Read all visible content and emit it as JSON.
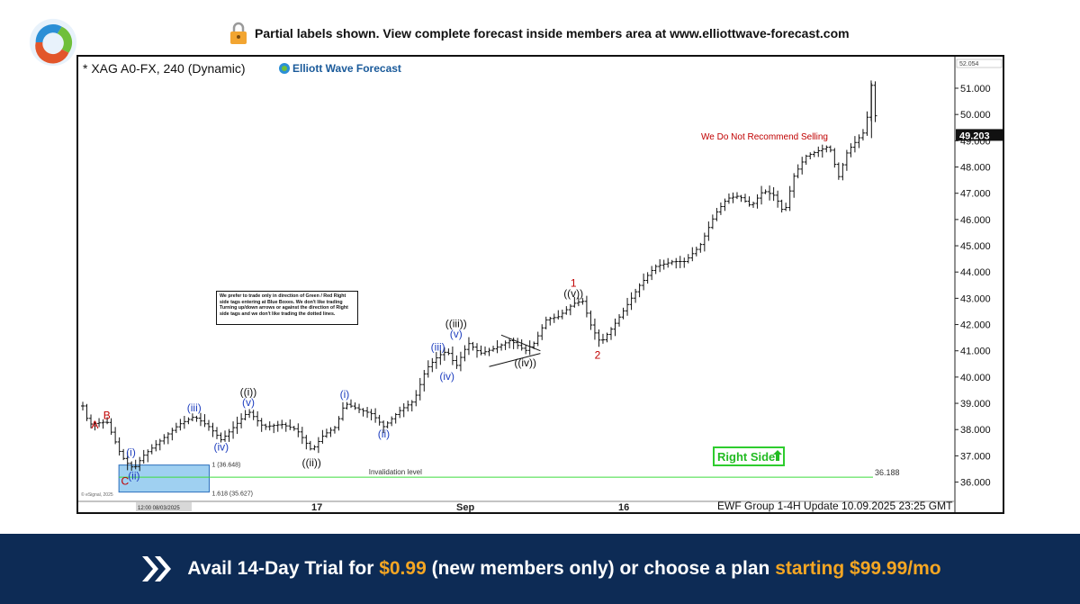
{
  "banner": {
    "text": "Partial labels shown. View complete forecast inside members area at www.elliottwave-forecast.com",
    "icon": "lock-icon"
  },
  "chart_data": {
    "type": "candlestick",
    "symbol_title": "* XAG A0-FX, 240 (Dynamic)",
    "brand": "Elliott Wave Forecast",
    "y_axis": {
      "range": [
        35.3,
        52.2
      ],
      "ticks": [
        "36.000",
        "37.000",
        "38.000",
        "39.000",
        "40.000",
        "41.000",
        "42.000",
        "43.000",
        "44.000",
        "45.000",
        "46.000",
        "47.000",
        "48.000",
        "49.000",
        "50.000",
        "51.000"
      ],
      "top_clipped_label": "52.054"
    },
    "last_price": "49.203",
    "x_axis": {
      "labels": [
        "12:00 08/03/2025",
        "17",
        "Sep",
        "16"
      ]
    },
    "price_path": [
      {
        "t": 0,
        "p": 38.9
      },
      {
        "t": 2,
        "p": 38.2
      },
      {
        "t": 8,
        "p": 38.3
      },
      {
        "t": 12,
        "p": 37.2
      },
      {
        "t": 14,
        "p": 36.8
      },
      {
        "t": 17,
        "p": 36.5
      },
      {
        "t": 20,
        "p": 37.0
      },
      {
        "t": 26,
        "p": 37.6
      },
      {
        "t": 32,
        "p": 38.2
      },
      {
        "t": 37,
        "p": 38.5
      },
      {
        "t": 42,
        "p": 38.1
      },
      {
        "t": 46,
        "p": 37.6
      },
      {
        "t": 51,
        "p": 38.2
      },
      {
        "t": 55,
        "p": 38.7
      },
      {
        "t": 60,
        "p": 38.1
      },
      {
        "t": 66,
        "p": 38.2
      },
      {
        "t": 71,
        "p": 38.0
      },
      {
        "t": 76,
        "p": 37.2
      },
      {
        "t": 80,
        "p": 37.8
      },
      {
        "t": 84,
        "p": 38.1
      },
      {
        "t": 87,
        "p": 39.0
      },
      {
        "t": 91,
        "p": 38.8
      },
      {
        "t": 96,
        "p": 38.6
      },
      {
        "t": 100,
        "p": 38.1
      },
      {
        "t": 105,
        "p": 38.7
      },
      {
        "t": 110,
        "p": 39.1
      },
      {
        "t": 114,
        "p": 40.3
      },
      {
        "t": 118,
        "p": 40.8
      },
      {
        "t": 121,
        "p": 41.0
      },
      {
        "t": 124,
        "p": 40.4
      },
      {
        "t": 128,
        "p": 41.3
      },
      {
        "t": 132,
        "p": 40.9
      },
      {
        "t": 137,
        "p": 41.1
      },
      {
        "t": 142,
        "p": 41.4
      },
      {
        "t": 147,
        "p": 41.0
      },
      {
        "t": 150,
        "p": 41.3
      },
      {
        "t": 154,
        "p": 42.2
      },
      {
        "t": 158,
        "p": 42.3
      },
      {
        "t": 163,
        "p": 42.8
      },
      {
        "t": 166,
        "p": 42.9
      },
      {
        "t": 169,
        "p": 41.9
      },
      {
        "t": 172,
        "p": 41.3
      },
      {
        "t": 176,
        "p": 41.9
      },
      {
        "t": 180,
        "p": 42.6
      },
      {
        "t": 185,
        "p": 43.5
      },
      {
        "t": 190,
        "p": 44.2
      },
      {
        "t": 196,
        "p": 44.4
      },
      {
        "t": 200,
        "p": 44.4
      },
      {
        "t": 205,
        "p": 45.0
      },
      {
        "t": 210,
        "p": 46.2
      },
      {
        "t": 214,
        "p": 46.8
      },
      {
        "t": 218,
        "p": 46.9
      },
      {
        "t": 222,
        "p": 46.5
      },
      {
        "t": 226,
        "p": 47.1
      },
      {
        "t": 230,
        "p": 46.9
      },
      {
        "t": 233,
        "p": 46.2
      },
      {
        "t": 236,
        "p": 47.6
      },
      {
        "t": 240,
        "p": 48.4
      },
      {
        "t": 244,
        "p": 48.6
      },
      {
        "t": 248,
        "p": 48.8
      },
      {
        "t": 251,
        "p": 47.6
      },
      {
        "t": 254,
        "p": 48.6
      },
      {
        "t": 257,
        "p": 49.0
      },
      {
        "t": 260,
        "p": 49.4
      },
      {
        "t": 262,
        "p": 51.2
      },
      {
        "t": 264,
        "p": 49.2
      }
    ],
    "wave_labels": [
      {
        "text": "A",
        "t": 4,
        "p": 38.05,
        "color": "#c00000"
      },
      {
        "text": "B",
        "t": 8,
        "p": 38.4,
        "color": "#c00000"
      },
      {
        "text": "C",
        "t": 14,
        "p": 35.9,
        "color": "#c00000"
      },
      {
        "text": "(i)",
        "t": 16,
        "p": 37.0,
        "color": "#1f3fbf"
      },
      {
        "text": "(ii)",
        "t": 17,
        "p": 36.1,
        "color": "#1f3fbf"
      },
      {
        "text": "(iii)",
        "t": 37,
        "p": 38.7,
        "color": "#1f3fbf"
      },
      {
        "text": "(iv)",
        "t": 46,
        "p": 37.2,
        "color": "#1f3fbf"
      },
      {
        "text": "(v)",
        "t": 55,
        "p": 38.9,
        "color": "#1f3fbf"
      },
      {
        "text": "((i))",
        "t": 55,
        "p": 39.3,
        "color": "#111111"
      },
      {
        "text": "((ii))",
        "t": 76,
        "p": 36.6,
        "color": "#111111"
      },
      {
        "text": "(i)",
        "t": 87,
        "p": 39.2,
        "color": "#1f3fbf"
      },
      {
        "text": "(ii)",
        "t": 100,
        "p": 37.7,
        "color": "#1f3fbf"
      },
      {
        "text": "(iii)",
        "t": 118,
        "p": 41.0,
        "color": "#1f3fbf"
      },
      {
        "text": "(iv)",
        "t": 121,
        "p": 39.9,
        "color": "#1f3fbf"
      },
      {
        "text": "(v)",
        "t": 124,
        "p": 41.5,
        "color": "#1f3fbf"
      },
      {
        "text": "((iii))",
        "t": 124,
        "p": 41.9,
        "color": "#111111"
      },
      {
        "text": "((iv))",
        "t": 147,
        "p": 40.4,
        "color": "#111111"
      },
      {
        "text": "((v))",
        "t": 163,
        "p": 43.05,
        "color": "#111111"
      },
      {
        "text": "1",
        "t": 163,
        "p": 43.45,
        "color": "#c00000"
      },
      {
        "text": "2",
        "t": 171,
        "p": 40.7,
        "color": "#c00000"
      }
    ],
    "blue_box": {
      "t0": 12,
      "t1": 42,
      "p0": 35.62,
      "p1": 36.65
    },
    "extension_labels": [
      "1 (36.648)",
      "1.618 (35.627)"
    ],
    "invalidation": {
      "label": "Invalidation level",
      "price": 36.188,
      "value_text": "36.188"
    },
    "triangle": {
      "t0": 139,
      "t1": 152,
      "top_start": 41.6,
      "top_end": 41.0,
      "bot_start": 40.4,
      "bot_end": 40.9
    },
    "note_text": "We prefer to trade only in direction of Green / Red Right side tags entering at Blue Boxes. We don't like trading Turning up/down arrows or against the direction of Right side tags and we don't like trading the dotted lines.",
    "warning_text": "We Do Not Recommend Selling",
    "right_side_tag": "Right Side",
    "copyright": "© eSignal, 2025",
    "update_text": "EWF Group 1-4H  Update 10.09.2025 23:25 GMT"
  },
  "footer": {
    "cta_prefix": "Avail 14-Day Trial for ",
    "price_trial": "$0.99",
    "cta_middle": " (new members only) or choose a plan ",
    "price_plan": "starting $99.99/mo",
    "accent": "#f5a623",
    "background": "#0d2b55"
  }
}
